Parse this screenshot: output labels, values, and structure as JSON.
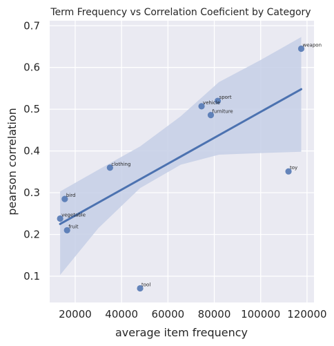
{
  "chart_data": {
    "type": "scatter",
    "title": "Term Frequency vs Correlation Coeficient by Category",
    "xlabel": "average item frequency",
    "ylabel": "pearson correlation",
    "xlim": [
      9000,
      123000
    ],
    "ylim": [
      0.037,
      0.712
    ],
    "xticks": [
      20000,
      40000,
      60000,
      80000,
      100000,
      120000
    ],
    "yticks": [
      0.1,
      0.2,
      0.3,
      0.4,
      0.5,
      0.6,
      0.7
    ],
    "grid": true,
    "point_color": "#4c72b0",
    "band_color": "#c5cfe6",
    "background_color": "#eaeaf2",
    "points": [
      {
        "label": "weapon",
        "x": 117500,
        "y": 0.645
      },
      {
        "label": "sport",
        "x": 81500,
        "y": 0.52
      },
      {
        "label": "vehicle",
        "x": 74500,
        "y": 0.507
      },
      {
        "label": "furniture",
        "x": 78500,
        "y": 0.486
      },
      {
        "label": "clothing",
        "x": 35000,
        "y": 0.36
      },
      {
        "label": "toy",
        "x": 112000,
        "y": 0.351
      },
      {
        "label": "bird",
        "x": 15500,
        "y": 0.285
      },
      {
        "label": "vegetable",
        "x": 13500,
        "y": 0.238
      },
      {
        "label": "fruit",
        "x": 16500,
        "y": 0.21
      },
      {
        "label": "tool",
        "x": 48000,
        "y": 0.071
      }
    ],
    "regression": {
      "x_start": 13500,
      "x_end": 117500,
      "y_start": 0.225,
      "y_end": 0.548,
      "ci": [
        {
          "x": 13500,
          "lo": 0.103,
          "hi": 0.303
        },
        {
          "x": 30000,
          "lo": 0.215,
          "hi": 0.355
        },
        {
          "x": 48000,
          "lo": 0.311,
          "hi": 0.411
        },
        {
          "x": 65500,
          "lo": 0.367,
          "hi": 0.483
        },
        {
          "x": 82000,
          "lo": 0.391,
          "hi": 0.565
        },
        {
          "x": 100000,
          "lo": 0.395,
          "hi": 0.618
        },
        {
          "x": 117500,
          "lo": 0.398,
          "hi": 0.673
        }
      ]
    }
  }
}
